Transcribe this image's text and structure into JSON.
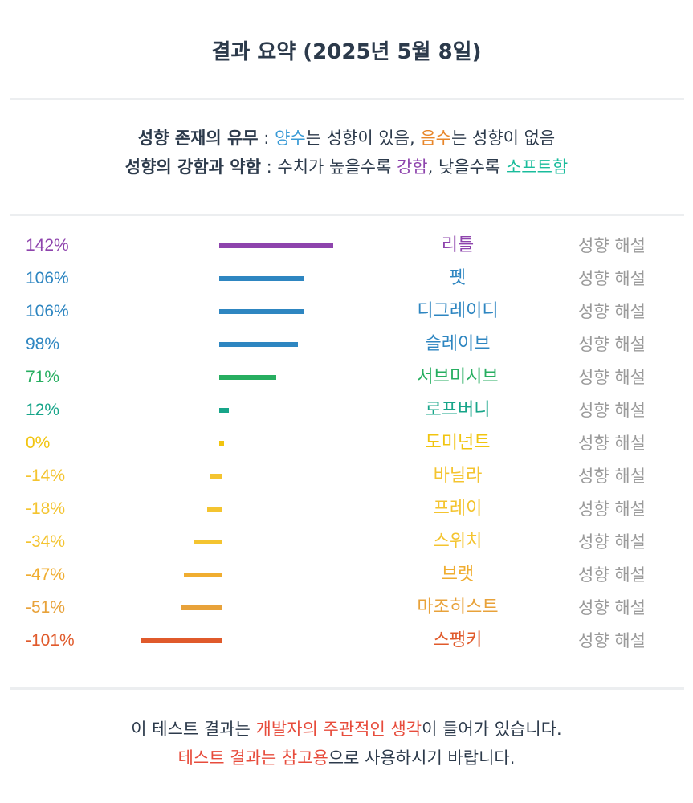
{
  "title": "결과 요약 (2025년 5월 8일)",
  "legend": {
    "line1_label": "성향 존재의 유무",
    "line1_sep": " : ",
    "line1_pos": "양수",
    "line1_mid": "는 성향이 있음, ",
    "line1_neg": "음수",
    "line1_end": "는 성향이 없음",
    "line2_label": "성향의 강함과 약함",
    "line2_sep": " : ",
    "line2_mid": "수치가 높을수록 ",
    "line2_strong": "강함",
    "line2_mid2": ", 낮을수록 ",
    "line2_soft": "소프트함"
  },
  "explain_label": "성향 해설",
  "chart_data": {
    "type": "bar",
    "orientation": "horizontal",
    "categories": [
      "리틀",
      "펫",
      "디그레이디",
      "슬레이브",
      "서브미시브",
      "로프버니",
      "도미넌트",
      "바닐라",
      "프레이",
      "스위치",
      "브랫",
      "마조히스트",
      "스팽키"
    ],
    "values": [
      142,
      106,
      106,
      98,
      71,
      12,
      0,
      -14,
      -18,
      -34,
      -47,
      -51,
      -101
    ],
    "labels": [
      "142%",
      "106%",
      "106%",
      "98%",
      "71%",
      "12%",
      "0%",
      "-14%",
      "-18%",
      "-34%",
      "-47%",
      "-51%",
      "-101%"
    ],
    "colors": [
      "#8e44ad",
      "#2e86c1",
      "#2e86c1",
      "#2e86c1",
      "#27ae60",
      "#17a589",
      "#f1c40f",
      "#f4c430",
      "#f4c430",
      "#f4c430",
      "#f0ad30",
      "#e8a23a",
      "#e05a2b"
    ],
    "unit": "%",
    "title": "",
    "xlabel": "",
    "ylabel": ""
  },
  "footer": {
    "line1_a": "이 테스트 결과는 ",
    "line1_b": "개발자의 주관적인 생각",
    "line1_c": "이 들어가 있습니다.",
    "line2_a": "테스트 결과는 참고용",
    "line2_b": "으로 사용하시기 바랍니다."
  }
}
